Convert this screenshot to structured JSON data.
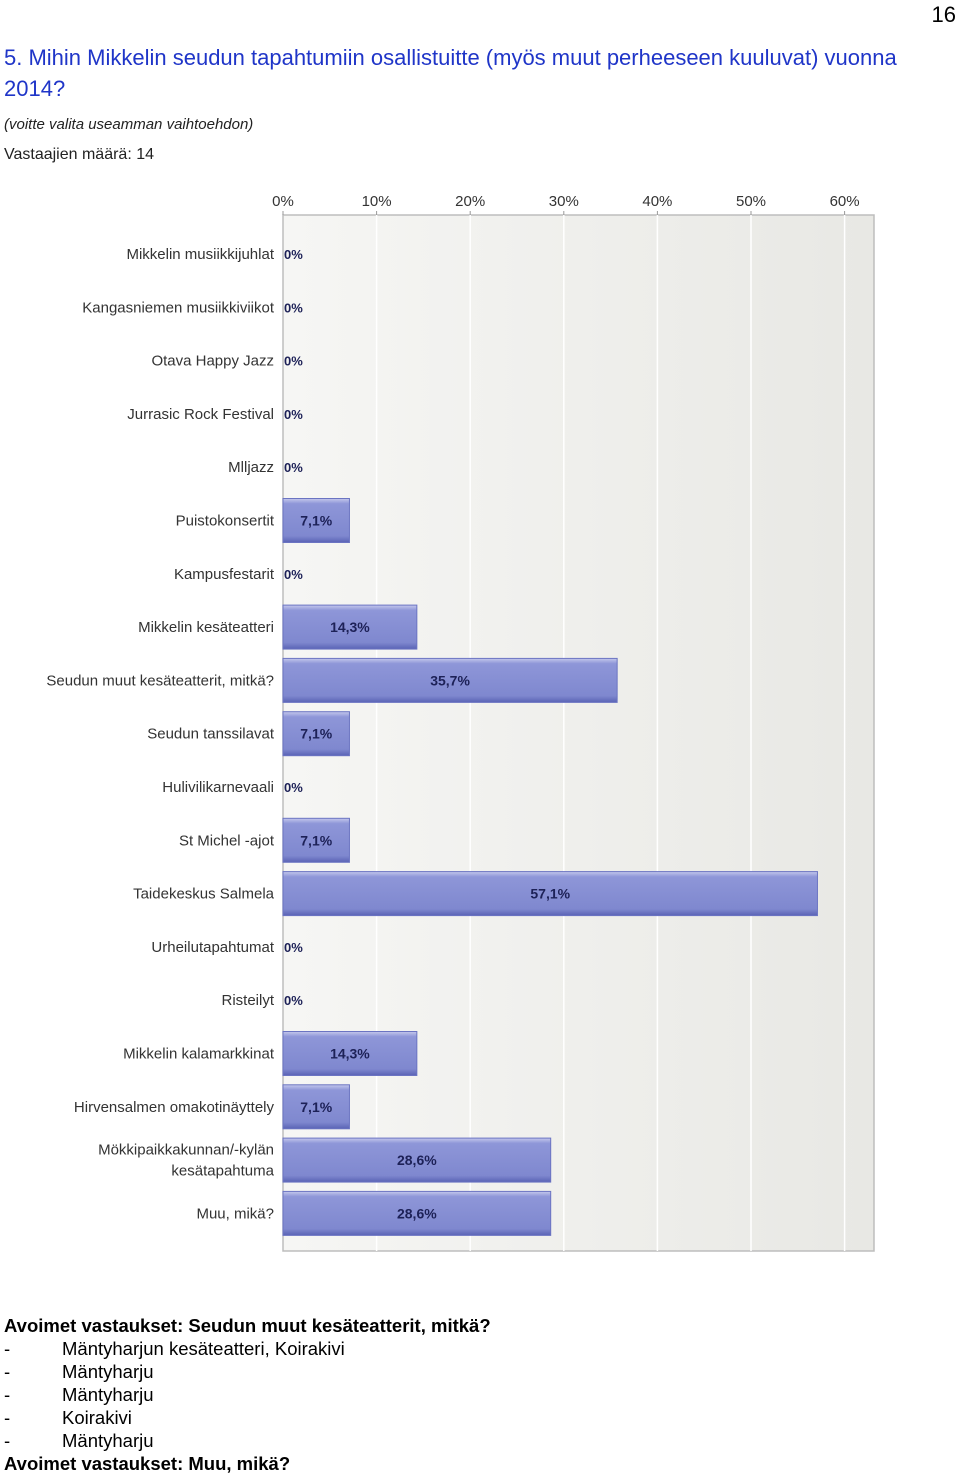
{
  "page_number": "16",
  "question": "5. Mihin Mikkelin seudun tapahtumiin osallistuitte (myös muut perheeseen kuuluvat) vuonna 2014?",
  "hint": "(voitte valita useamman vaihtoehdon)",
  "respondents": "Vastaajien määrä: 14",
  "chart_data": {
    "type": "bar",
    "orientation": "horizontal",
    "xlim": [
      0,
      63
    ],
    "x_ticks": [
      "0%",
      "10%",
      "20%",
      "30%",
      "40%",
      "50%",
      "60%"
    ],
    "grid": true,
    "categories": [
      [
        "Mikkelin musiikkijuhlat"
      ],
      [
        "Kangasniemen musiikkiviikot"
      ],
      [
        "Otava Happy Jazz"
      ],
      [
        "Jurrasic Rock Festival"
      ],
      [
        "Mlljazz"
      ],
      [
        "Puistokonsertit"
      ],
      [
        "Kampusfestarit"
      ],
      [
        "Mikkelin kesäteatteri"
      ],
      [
        "Seudun muut kesäteatterit, mitkä?"
      ],
      [
        "Seudun tanssilavat"
      ],
      [
        "Hulivilikarnevaali"
      ],
      [
        "St Michel -ajot"
      ],
      [
        "Taidekeskus Salmela"
      ],
      [
        "Urheilutapahtumat"
      ],
      [
        "Risteilyt"
      ],
      [
        "Mikkelin kalamarkkinat"
      ],
      [
        "Hirvensalmen omakotinäyttely"
      ],
      [
        "Mökkipaikkakunnan/-kylän",
        "kesätapahtuma"
      ],
      [
        "Muu, mikä?"
      ]
    ],
    "values": [
      0,
      0,
      0,
      0,
      0,
      7.1,
      0,
      14.3,
      35.7,
      7.1,
      0,
      7.1,
      57.1,
      0,
      0,
      14.3,
      7.1,
      28.6,
      28.6
    ],
    "value_labels": [
      "0%",
      "0%",
      "0%",
      "0%",
      "0%",
      "7,1%",
      "0%",
      "14,3%",
      "35,7%",
      "7,1%",
      "0%",
      "7,1%",
      "57,1%",
      "0%",
      "0%",
      "14,3%",
      "7,1%",
      "28,6%",
      "28,6%"
    ],
    "colors": {
      "bar": "#7f88cf",
      "bar_light": "#c4c8ec",
      "bar_dark": "#5a63b5",
      "plot_bg": "#eeeeea",
      "grid": "#ffffff"
    }
  },
  "open_answers_1": {
    "heading": "Avoimet vastaukset: Seudun muut kesäteatterit, mitkä?",
    "items": [
      "Mäntyharjun kesäteatteri, Koirakivi",
      "Mäntyharju",
      "Mäntyharju",
      "Koirakivi",
      "Mäntyharju"
    ],
    "dash": "-"
  },
  "open_answers_2_heading": "Avoimet vastaukset: Muu, mikä?"
}
